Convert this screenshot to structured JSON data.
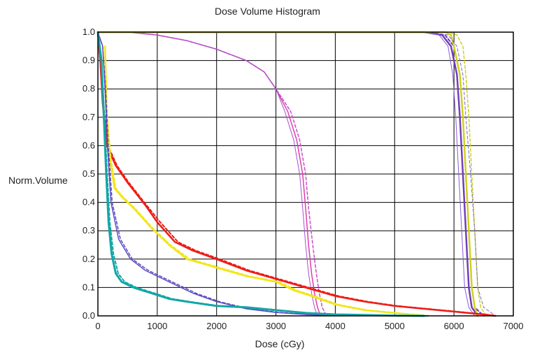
{
  "chart_data": {
    "type": "line",
    "title": "Dose Volume Histogram",
    "xlabel": "Dose (cGy)",
    "ylabel": "Norm.Volume",
    "xlim": [
      0,
      7000
    ],
    "ylim": [
      0,
      1
    ],
    "xticks": [
      "0",
      "1000",
      "2000",
      "3000",
      "4000",
      "5000",
      "6000",
      "7000"
    ],
    "yticks": [
      "0.0",
      "0.1",
      "0.2",
      "0.3",
      "0.4",
      "0.5",
      "0.6",
      "0.7",
      "0.8",
      "0.9",
      "1.0"
    ],
    "grid": true,
    "legend": "none",
    "series": [
      {
        "color": "#e03cb0",
        "dash": false,
        "width": 1.5,
        "points": [
          [
            0,
            1
          ],
          [
            500,
            1
          ],
          [
            1000,
            0.99
          ],
          [
            1500,
            0.97
          ],
          [
            2000,
            0.94
          ],
          [
            2500,
            0.9
          ],
          [
            2800,
            0.86
          ],
          [
            3000,
            0.8
          ],
          [
            3200,
            0.72
          ],
          [
            3350,
            0.62
          ],
          [
            3450,
            0.5
          ],
          [
            3500,
            0.38
          ],
          [
            3550,
            0.25
          ],
          [
            3600,
            0.15
          ],
          [
            3650,
            0.08
          ],
          [
            3700,
            0.03
          ],
          [
            3750,
            0
          ]
        ]
      },
      {
        "color": "#c94fc7",
        "dash": true,
        "width": 1.5,
        "points": [
          [
            0,
            1
          ],
          [
            500,
            1
          ],
          [
            1000,
            0.99
          ],
          [
            1500,
            0.97
          ],
          [
            2000,
            0.94
          ],
          [
            2500,
            0.9
          ],
          [
            2800,
            0.86
          ],
          [
            3000,
            0.8
          ],
          [
            3250,
            0.72
          ],
          [
            3400,
            0.62
          ],
          [
            3500,
            0.5
          ],
          [
            3550,
            0.38
          ],
          [
            3620,
            0.25
          ],
          [
            3680,
            0.15
          ],
          [
            3730,
            0.08
          ],
          [
            3780,
            0.03
          ],
          [
            3850,
            0
          ]
        ]
      },
      {
        "color": "#a84fcf",
        "dash": false,
        "width": 1,
        "points": [
          [
            0,
            1
          ],
          [
            500,
            1
          ],
          [
            1000,
            0.99
          ],
          [
            1500,
            0.97
          ],
          [
            2000,
            0.94
          ],
          [
            2500,
            0.9
          ],
          [
            2800,
            0.86
          ],
          [
            3000,
            0.8
          ],
          [
            3150,
            0.72
          ],
          [
            3300,
            0.62
          ],
          [
            3400,
            0.5
          ],
          [
            3450,
            0.38
          ],
          [
            3500,
            0.25
          ],
          [
            3550,
            0.15
          ],
          [
            3600,
            0.08
          ],
          [
            3650,
            0.03
          ],
          [
            3700,
            0
          ]
        ]
      },
      {
        "color": "#7040b8",
        "dash": false,
        "width": 2.5,
        "points": [
          [
            0,
            1
          ],
          [
            5500,
            1
          ],
          [
            5800,
            0.99
          ],
          [
            5950,
            0.95
          ],
          [
            6050,
            0.85
          ],
          [
            6100,
            0.7
          ],
          [
            6150,
            0.5
          ],
          [
            6200,
            0.3
          ],
          [
            6250,
            0.1
          ],
          [
            6300,
            0.03
          ],
          [
            6400,
            0
          ]
        ]
      },
      {
        "color": "#7040b8",
        "dash": true,
        "width": 2,
        "points": [
          [
            0,
            1
          ],
          [
            5550,
            1
          ],
          [
            5850,
            0.99
          ],
          [
            6000,
            0.95
          ],
          [
            6100,
            0.85
          ],
          [
            6150,
            0.7
          ],
          [
            6200,
            0.5
          ],
          [
            6250,
            0.3
          ],
          [
            6300,
            0.1
          ],
          [
            6350,
            0.03
          ],
          [
            6500,
            0
          ]
        ]
      },
      {
        "color": "#8a5ad6",
        "dash": false,
        "width": 1,
        "points": [
          [
            0,
            1
          ],
          [
            5450,
            1
          ],
          [
            5750,
            0.99
          ],
          [
            5900,
            0.95
          ],
          [
            5980,
            0.85
          ],
          [
            6030,
            0.7
          ],
          [
            6080,
            0.5
          ],
          [
            6130,
            0.3
          ],
          [
            6180,
            0.1
          ],
          [
            6250,
            0.03
          ],
          [
            6350,
            0
          ]
        ]
      },
      {
        "color": "#cfd21f",
        "dash": false,
        "width": 2.5,
        "points": [
          [
            0,
            1
          ],
          [
            5850,
            1
          ],
          [
            5950,
            0.99
          ],
          [
            6000,
            0.95
          ],
          [
            6100,
            0.85
          ],
          [
            6150,
            0.7
          ],
          [
            6200,
            0.5
          ],
          [
            6250,
            0.3
          ],
          [
            6300,
            0.1
          ],
          [
            6350,
            0.03
          ],
          [
            6400,
            0
          ]
        ]
      },
      {
        "color": "#cfd21f",
        "dash": true,
        "width": 1.5,
        "points": [
          [
            0,
            1
          ],
          [
            5900,
            1
          ],
          [
            6050,
            0.99
          ],
          [
            6150,
            0.95
          ],
          [
            6200,
            0.85
          ],
          [
            6250,
            0.7
          ],
          [
            6300,
            0.5
          ],
          [
            6350,
            0.3
          ],
          [
            6400,
            0.1
          ],
          [
            6450,
            0.03
          ],
          [
            6550,
            0
          ]
        ]
      },
      {
        "color": "#7a68d0",
        "dash": true,
        "width": 1,
        "points": [
          [
            0,
            1
          ],
          [
            5600,
            1
          ],
          [
            5900,
            0.99
          ],
          [
            6050,
            0.95
          ],
          [
            6150,
            0.85
          ],
          [
            6200,
            0.7
          ],
          [
            6280,
            0.5
          ],
          [
            6350,
            0.3
          ],
          [
            6400,
            0.1
          ],
          [
            6500,
            0.03
          ],
          [
            6700,
            0
          ]
        ]
      },
      {
        "color": "#ee1c16",
        "dash": false,
        "width": 2.5,
        "points": [
          [
            0,
            1
          ],
          [
            40,
            0.9
          ],
          [
            80,
            0.75
          ],
          [
            150,
            0.6
          ],
          [
            300,
            0.53
          ],
          [
            500,
            0.47
          ],
          [
            800,
            0.39
          ],
          [
            1000,
            0.33
          ],
          [
            1300,
            0.26
          ],
          [
            1600,
            0.23
          ],
          [
            2000,
            0.2
          ],
          [
            2500,
            0.16
          ],
          [
            3000,
            0.13
          ],
          [
            3500,
            0.1
          ],
          [
            4000,
            0.07
          ],
          [
            4500,
            0.05
          ],
          [
            5000,
            0.035
          ],
          [
            5500,
            0.025
          ],
          [
            6000,
            0.015
          ],
          [
            6500,
            0.005
          ],
          [
            6700,
            0
          ]
        ]
      },
      {
        "color": "#ee1c16",
        "dash": true,
        "width": 2,
        "points": [
          [
            0,
            1
          ],
          [
            40,
            0.9
          ],
          [
            90,
            0.75
          ],
          [
            170,
            0.6
          ],
          [
            320,
            0.53
          ],
          [
            520,
            0.47
          ],
          [
            820,
            0.39
          ],
          [
            1050,
            0.33
          ],
          [
            1350,
            0.26
          ],
          [
            1650,
            0.23
          ],
          [
            2050,
            0.2
          ],
          [
            2550,
            0.16
          ],
          [
            3050,
            0.13
          ],
          [
            3550,
            0.1
          ],
          [
            4050,
            0.07
          ],
          [
            4550,
            0.05
          ],
          [
            5050,
            0.035
          ],
          [
            5550,
            0.025
          ],
          [
            6050,
            0.015
          ],
          [
            6550,
            0.005
          ],
          [
            6700,
            0
          ]
        ]
      },
      {
        "color": "#f2e61a",
        "dash": false,
        "width": 2.5,
        "points": [
          [
            120,
            0.95
          ],
          [
            150,
            0.7
          ],
          [
            200,
            0.55
          ],
          [
            280,
            0.45
          ],
          [
            400,
            0.42
          ],
          [
            600,
            0.38
          ],
          [
            900,
            0.31
          ],
          [
            1200,
            0.25
          ],
          [
            1500,
            0.2
          ],
          [
            2000,
            0.17
          ],
          [
            2500,
            0.14
          ],
          [
            3000,
            0.12
          ],
          [
            3300,
            0.09
          ],
          [
            3600,
            0.07
          ],
          [
            4000,
            0.04
          ],
          [
            4500,
            0.02
          ],
          [
            5000,
            0.01
          ],
          [
            5500,
            0
          ]
        ]
      },
      {
        "color": "#f2e61a",
        "dash": true,
        "width": 2,
        "points": [
          [
            120,
            0.95
          ],
          [
            160,
            0.7
          ],
          [
            220,
            0.55
          ],
          [
            300,
            0.45
          ],
          [
            420,
            0.42
          ],
          [
            620,
            0.38
          ],
          [
            920,
            0.31
          ],
          [
            1220,
            0.25
          ],
          [
            1550,
            0.2
          ],
          [
            2050,
            0.17
          ],
          [
            2550,
            0.14
          ],
          [
            3050,
            0.12
          ],
          [
            3350,
            0.09
          ],
          [
            3650,
            0.07
          ],
          [
            4050,
            0.04
          ],
          [
            4550,
            0.02
          ],
          [
            5050,
            0.01
          ],
          [
            5600,
            0
          ]
        ]
      },
      {
        "color": "#5a4bc0",
        "dash": false,
        "width": 1.5,
        "points": [
          [
            0,
            1
          ],
          [
            80,
            0.95
          ],
          [
            120,
            0.8
          ],
          [
            160,
            0.6
          ],
          [
            220,
            0.4
          ],
          [
            350,
            0.27
          ],
          [
            550,
            0.2
          ],
          [
            800,
            0.16
          ],
          [
            1200,
            0.12
          ],
          [
            1600,
            0.08
          ],
          [
            2000,
            0.05
          ],
          [
            2500,
            0.025
          ],
          [
            3000,
            0.012
          ],
          [
            3500,
            0.005
          ],
          [
            4000,
            0
          ]
        ]
      },
      {
        "color": "#5a4bc0",
        "dash": true,
        "width": 1.5,
        "points": [
          [
            0,
            1
          ],
          [
            80,
            0.95
          ],
          [
            130,
            0.8
          ],
          [
            175,
            0.6
          ],
          [
            240,
            0.4
          ],
          [
            380,
            0.27
          ],
          [
            580,
            0.2
          ],
          [
            850,
            0.16
          ],
          [
            1250,
            0.12
          ],
          [
            1650,
            0.08
          ],
          [
            2050,
            0.05
          ],
          [
            2550,
            0.025
          ],
          [
            3050,
            0.012
          ],
          [
            3550,
            0.005
          ],
          [
            4050,
            0
          ]
        ]
      },
      {
        "color": "#13a6a6",
        "dash": false,
        "width": 3,
        "points": [
          [
            0,
            1
          ],
          [
            60,
            0.9
          ],
          [
            100,
            0.7
          ],
          [
            140,
            0.5
          ],
          [
            180,
            0.33
          ],
          [
            230,
            0.22
          ],
          [
            300,
            0.15
          ],
          [
            400,
            0.12
          ],
          [
            600,
            0.1
          ],
          [
            900,
            0.08
          ],
          [
            1200,
            0.06
          ],
          [
            1500,
            0.05
          ],
          [
            2000,
            0.035
          ],
          [
            2500,
            0.03
          ],
          [
            3000,
            0.02
          ],
          [
            3500,
            0.01
          ],
          [
            4000,
            0.005
          ],
          [
            4500,
            0.003
          ],
          [
            5000,
            0.001
          ],
          [
            5500,
            0
          ]
        ]
      },
      {
        "color": "#13a6a6",
        "dash": true,
        "width": 2,
        "points": [
          [
            0,
            1
          ],
          [
            60,
            0.9
          ],
          [
            110,
            0.7
          ],
          [
            155,
            0.5
          ],
          [
            200,
            0.33
          ],
          [
            260,
            0.22
          ],
          [
            340,
            0.15
          ],
          [
            450,
            0.12
          ],
          [
            650,
            0.1
          ],
          [
            950,
            0.08
          ],
          [
            1250,
            0.06
          ],
          [
            1550,
            0.05
          ],
          [
            2050,
            0.035
          ],
          [
            2550,
            0.03
          ],
          [
            3050,
            0.02
          ],
          [
            3550,
            0.01
          ],
          [
            4050,
            0.005
          ],
          [
            4550,
            0.003
          ],
          [
            5050,
            0.001
          ],
          [
            5600,
            0
          ]
        ]
      }
    ]
  }
}
